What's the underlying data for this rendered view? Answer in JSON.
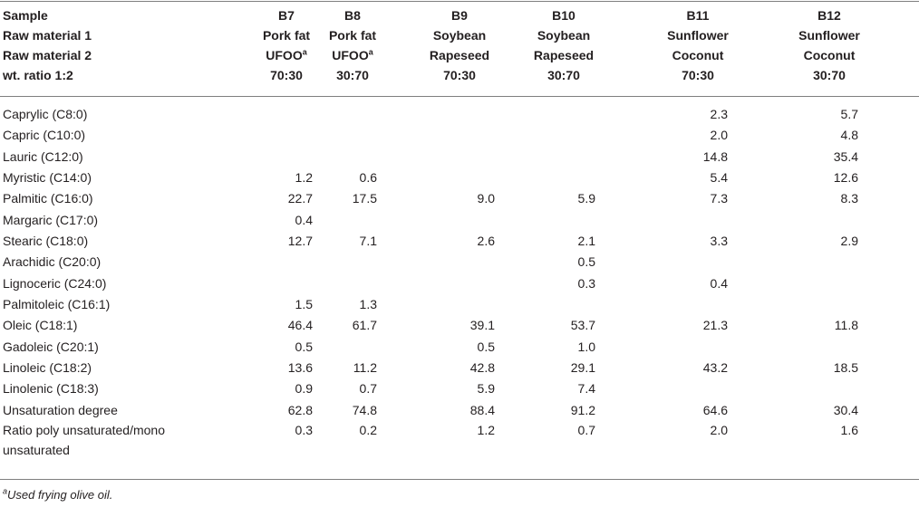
{
  "header": {
    "labels": [
      "Sample",
      "Raw material 1",
      "Raw material 2",
      "wt. ratio 1:2"
    ],
    "columns": [
      {
        "sample": "B7",
        "raw1": "Pork fat",
        "raw2": "UFOO",
        "raw2_sup": "a",
        "ratio": "70:30"
      },
      {
        "sample": "B8",
        "raw1": "Pork fat",
        "raw2": "UFOO",
        "raw2_sup": "a",
        "ratio": "30:70"
      },
      {
        "sample": "B9",
        "raw1": "Soybean",
        "raw2": "Rapeseed",
        "raw2_sup": "",
        "ratio": "70:30"
      },
      {
        "sample": "B10",
        "raw1": "Soybean",
        "raw2": "Rapeseed",
        "raw2_sup": "",
        "ratio": "30:70"
      },
      {
        "sample": "B11",
        "raw1": "Sunflower",
        "raw2": "Coconut",
        "raw2_sup": "",
        "ratio": "70:30"
      },
      {
        "sample": "B12",
        "raw1": "Sunflower",
        "raw2": "Coconut",
        "raw2_sup": "",
        "ratio": "30:70"
      }
    ]
  },
  "rows": [
    {
      "label": "Caprylic (C8:0)",
      "values": [
        "",
        "",
        "",
        "",
        "2.3",
        "5.7"
      ]
    },
    {
      "label": "Capric (C10:0)",
      "values": [
        "",
        "",
        "",
        "",
        "2.0",
        "4.8"
      ]
    },
    {
      "label": "Lauric (C12:0)",
      "values": [
        "",
        "",
        "",
        "",
        "14.8",
        "35.4"
      ]
    },
    {
      "label": "Myristic (C14:0)",
      "values": [
        "1.2",
        "0.6",
        "",
        "",
        "5.4",
        "12.6"
      ]
    },
    {
      "label": "Palmitic (C16:0)",
      "values": [
        "22.7",
        "17.5",
        "9.0",
        "5.9",
        "7.3",
        "8.3"
      ]
    },
    {
      "label": "Margaric (C17:0)",
      "values": [
        "0.4",
        "",
        "",
        "",
        "",
        ""
      ]
    },
    {
      "label": "Stearic (C18:0)",
      "values": [
        "12.7",
        "7.1",
        "2.6",
        "2.1",
        "3.3",
        "2.9"
      ]
    },
    {
      "label": "Arachidic (C20:0)",
      "values": [
        "",
        "",
        "",
        "0.5",
        "",
        ""
      ]
    },
    {
      "label": "Lignoceric (C24:0)",
      "values": [
        "",
        "",
        "",
        "0.3",
        "0.4",
        ""
      ]
    },
    {
      "label": "Palmitoleic (C16:1)",
      "values": [
        "1.5",
        "1.3",
        "",
        "",
        "",
        ""
      ]
    },
    {
      "label": "Oleic (C18:1)",
      "values": [
        "46.4",
        "61.7",
        "39.1",
        "53.7",
        "21.3",
        "11.8"
      ]
    },
    {
      "label": "Gadoleic (C20:1)",
      "values": [
        "0.5",
        "",
        "0.5",
        "1.0",
        "",
        ""
      ]
    },
    {
      "label": "Linoleic (C18:2)",
      "values": [
        "13.6",
        "11.2",
        "42.8",
        "29.1",
        "43.2",
        "18.5"
      ]
    },
    {
      "label": "Linolenic (C18:3)",
      "values": [
        "0.9",
        "0.7",
        "5.9",
        "7.4",
        "",
        ""
      ]
    },
    {
      "label": "Unsaturation degree",
      "values": [
        "62.8",
        "74.8",
        "88.4",
        "91.2",
        "64.6",
        "30.4"
      ]
    }
  ],
  "last_row": {
    "label": "Ratio poly unsaturated/mono unsaturated",
    "values": [
      "0.3",
      "0.2",
      "1.2",
      "0.7",
      "2.0",
      "1.6"
    ]
  },
  "footnote": {
    "marker": "a",
    "text": "Used frying olive oil."
  }
}
